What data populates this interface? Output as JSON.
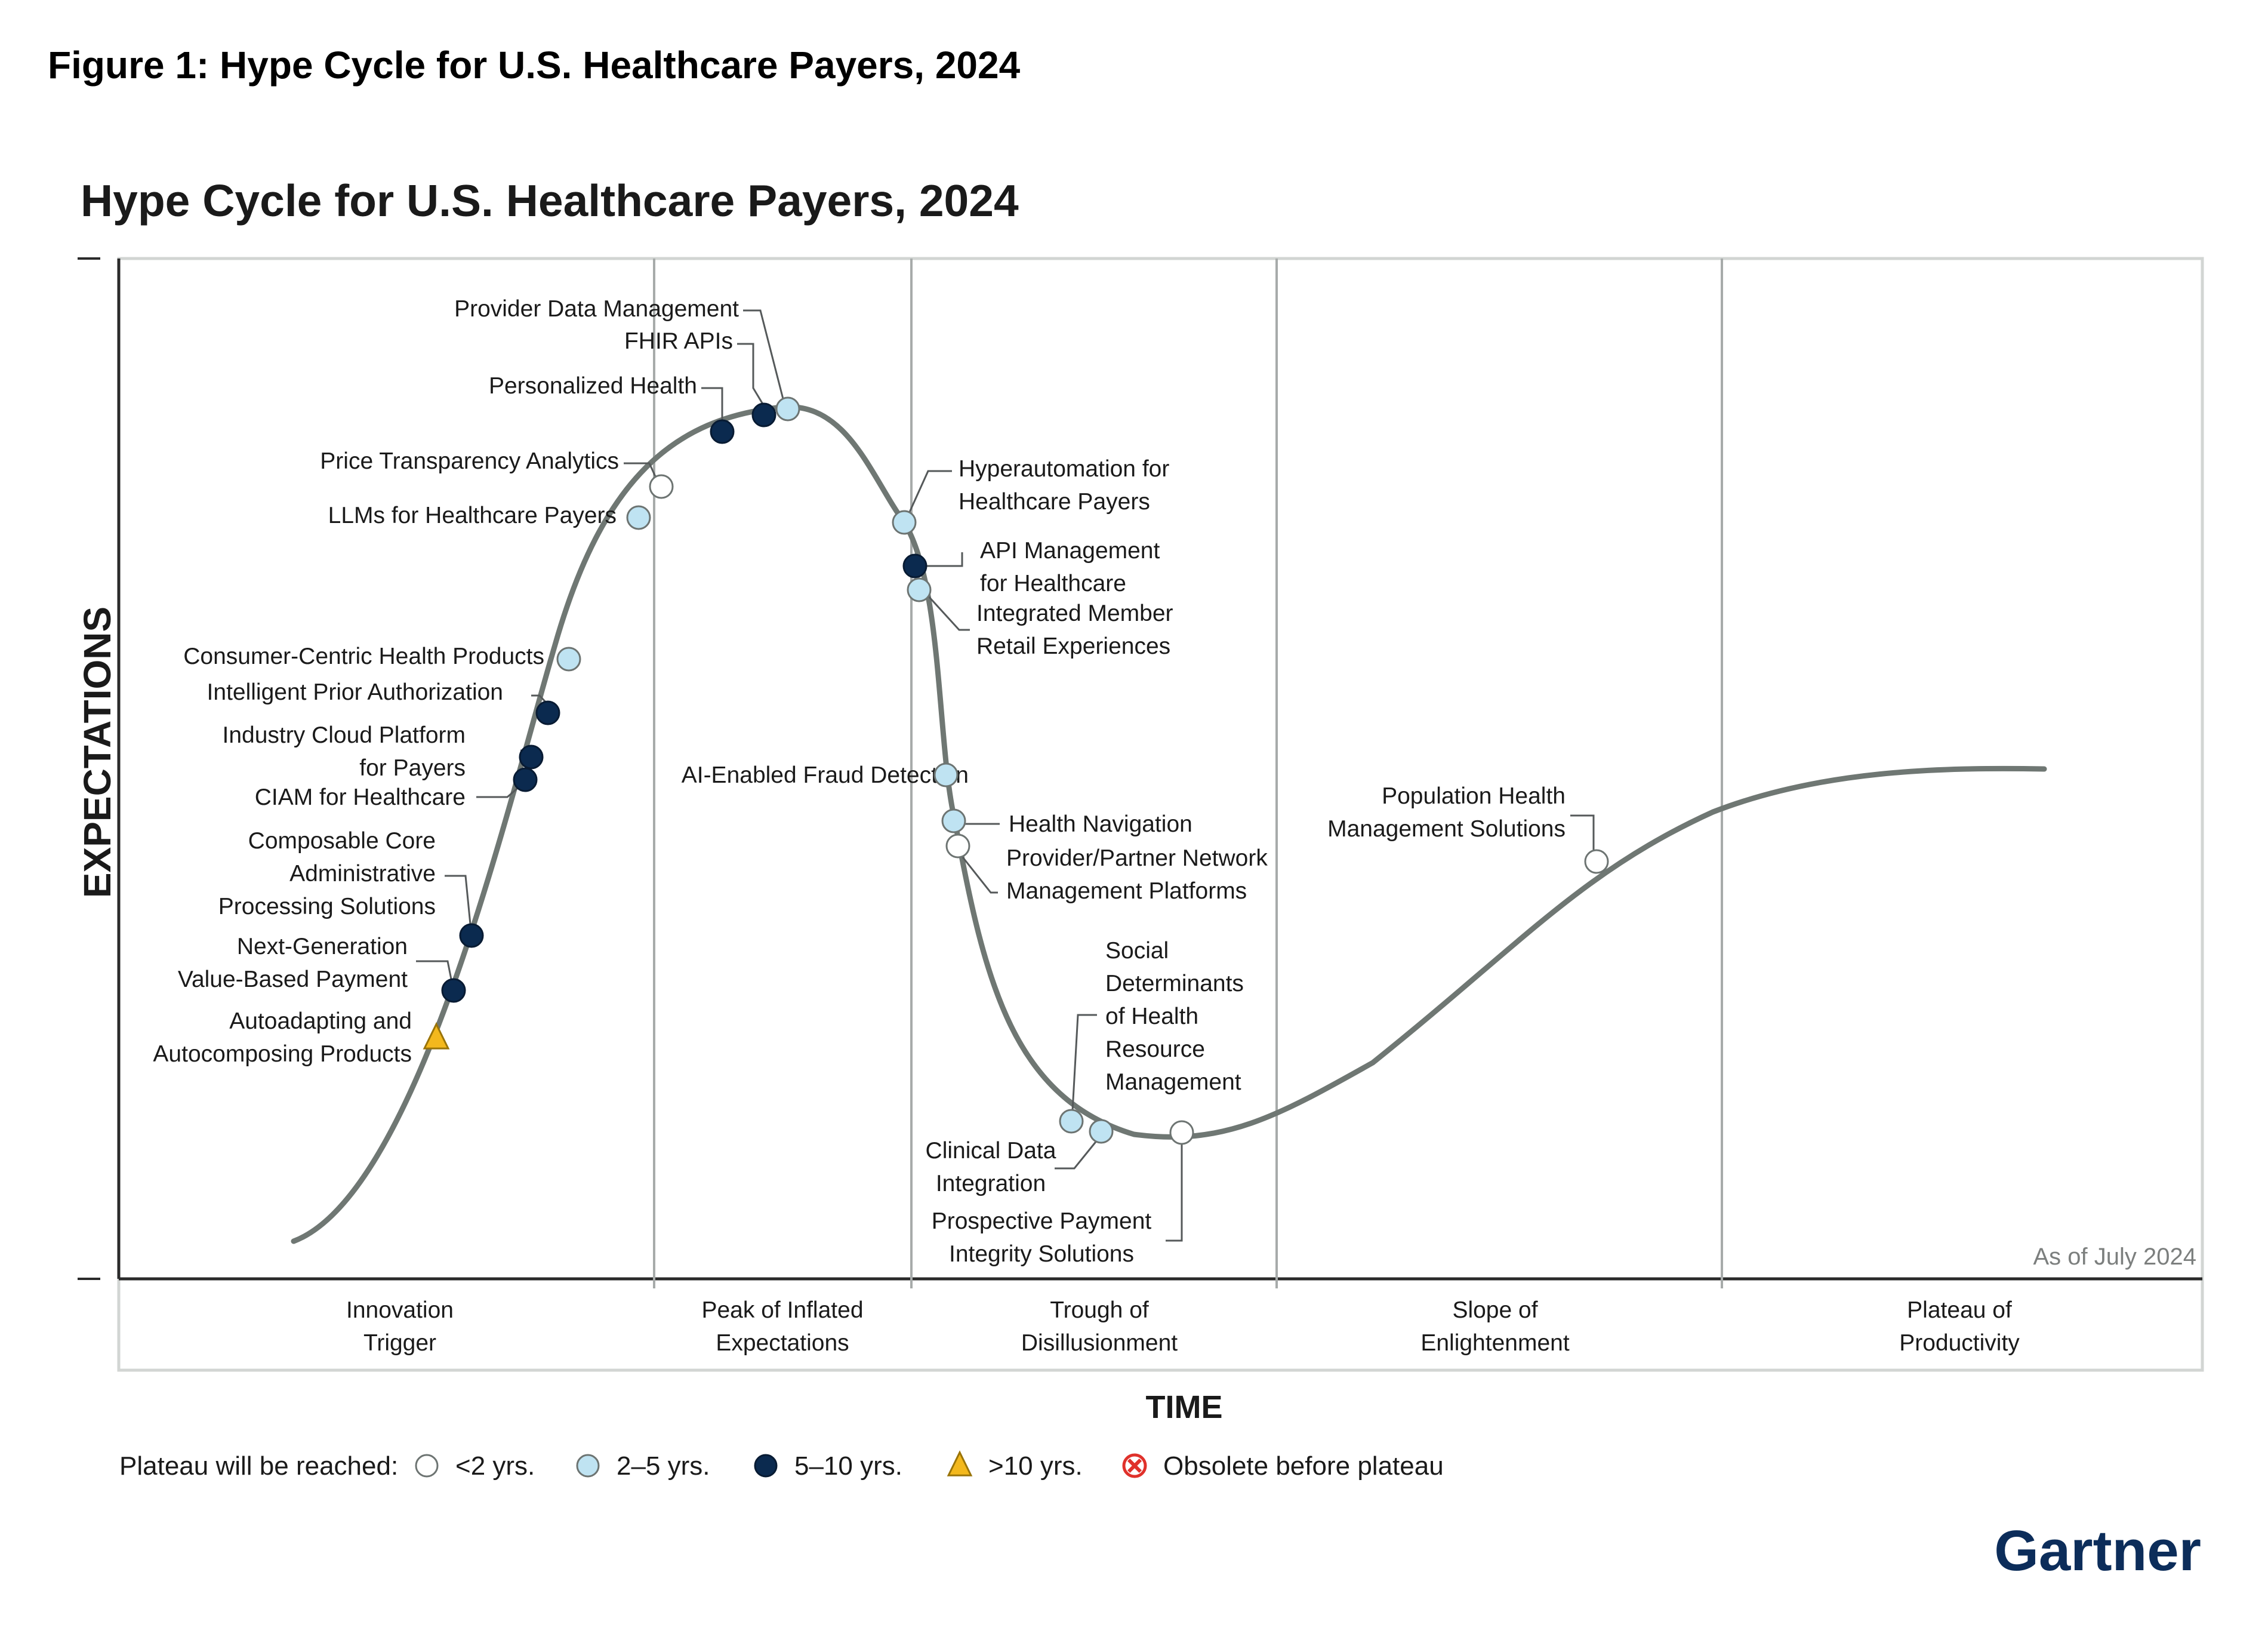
{
  "figure_title": "Figure 1: Hype Cycle for U.S. Healthcare Payers, 2024",
  "chart_title": "Hype Cycle for U.S. Healthcare Payers, 2024",
  "y_axis_label": "EXPECTATIONS",
  "x_axis_label": "TIME",
  "as_of": "As of July 2024",
  "brand": "Gartner",
  "phases": [
    {
      "lines": [
        "Innovation",
        "Trigger"
      ]
    },
    {
      "lines": [
        "Peak of Inflated",
        "Expectations"
      ]
    },
    {
      "lines": [
        "Trough of",
        "Disillusionment"
      ]
    },
    {
      "lines": [
        "Slope of",
        "Enlightenment"
      ]
    },
    {
      "lines": [
        "Plateau of",
        "Productivity"
      ]
    }
  ],
  "legend": {
    "title": "Plateau will be reached:",
    "items": [
      {
        "kind": "lt2",
        "label": "<2 yrs."
      },
      {
        "kind": "2to5",
        "label": "2–5 yrs."
      },
      {
        "kind": "5to10",
        "label": "5–10 yrs."
      },
      {
        "kind": "gt10",
        "label": ">10 yrs."
      },
      {
        "kind": "obsolete",
        "label": "Obsolete before plateau"
      }
    ]
  },
  "colors": {
    "lt2": "#ffffff",
    "2to5": "#bfe3f2",
    "5to10": "#0b2a4f",
    "gt10": "#f3b81d",
    "obsolete": "#e0312b",
    "curve": "#6f7773",
    "brand": "#0c2d5a"
  },
  "technologies": [
    {
      "lines": [
        "Provider Data Management"
      ],
      "timeframe": "2to5"
    },
    {
      "lines": [
        "FHIR APIs"
      ],
      "timeframe": "5to10"
    },
    {
      "lines": [
        "Personalized Health"
      ],
      "timeframe": "5to10"
    },
    {
      "lines": [
        "Price Transparency Analytics"
      ],
      "timeframe": "lt2"
    },
    {
      "lines": [
        "LLMs for Healthcare Payers"
      ],
      "timeframe": "2to5"
    },
    {
      "lines": [
        "Consumer-Centric Health Products"
      ],
      "timeframe": "2to5"
    },
    {
      "lines": [
        "Intelligent Prior Authorization"
      ],
      "timeframe": "5to10"
    },
    {
      "lines": [
        "Industry Cloud Platform",
        "for Payers"
      ],
      "timeframe": "5to10"
    },
    {
      "lines": [
        "CIAM for Healthcare"
      ],
      "timeframe": "5to10"
    },
    {
      "lines": [
        "Composable Core",
        "Administrative",
        "Processing Solutions"
      ],
      "timeframe": "5to10"
    },
    {
      "lines": [
        "Next-Generation",
        "Value-Based Payment"
      ],
      "timeframe": "5to10"
    },
    {
      "lines": [
        "Autoadapting and",
        "Autocomposing Products"
      ],
      "timeframe": "gt10"
    },
    {
      "lines": [
        "Hyperautomation for",
        "Healthcare Payers"
      ],
      "timeframe": "2to5"
    },
    {
      "lines": [
        "API Management",
        "for Healthcare"
      ],
      "timeframe": "5to10"
    },
    {
      "lines": [
        "Integrated Member",
        "Retail Experiences"
      ],
      "timeframe": "2to5"
    },
    {
      "lines": [
        "AI-Enabled Fraud Detection"
      ],
      "timeframe": "2to5"
    },
    {
      "lines": [
        "Health Navigation"
      ],
      "timeframe": "2to5"
    },
    {
      "lines": [
        "Provider/Partner Network",
        "Management Platforms"
      ],
      "timeframe": "lt2"
    },
    {
      "lines": [
        "Social",
        "Determinants",
        "of Health",
        "Resource",
        "Management"
      ],
      "timeframe": "2to5"
    },
    {
      "lines": [
        "Clinical Data",
        "Integration"
      ],
      "timeframe": "2to5"
    },
    {
      "lines": [
        "Prospective Payment",
        "Integrity Solutions"
      ],
      "timeframe": "lt2"
    },
    {
      "lines": [
        "Population Health",
        "Management Solutions"
      ],
      "timeframe": "lt2"
    }
  ]
}
